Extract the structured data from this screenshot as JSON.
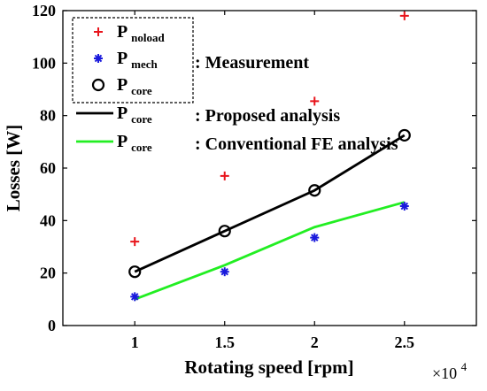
{
  "chart_data": {
    "type": "line",
    "x": [
      1,
      1.5,
      2,
      2.5
    ],
    "xlabel": "Rotating speed [rpm]",
    "ylabel": "Losses [W]",
    "x_multiplier_label": "×10",
    "x_multiplier_exponent": "4",
    "xlim": [
      0.6,
      2.9
    ],
    "ylim": [
      0,
      120
    ],
    "xticks": [
      "1",
      "1.5",
      "2",
      "2.5"
    ],
    "yticks": [
      "0",
      "20",
      "40",
      "60",
      "80",
      "100",
      "120"
    ],
    "grid": false,
    "series": [
      {
        "key": "noload",
        "main": "P",
        "sub": "noload",
        "marker": "plus",
        "color": "#e8141b",
        "values": [
          32,
          57,
          85.5,
          118
        ]
      },
      {
        "key": "mech",
        "main": "P",
        "sub": "mech",
        "marker": "star",
        "color": "#1a1adc",
        "values": [
          11,
          20.5,
          33.5,
          45.5
        ]
      },
      {
        "key": "core_meas",
        "main": "P",
        "sub": "core",
        "marker": "circle",
        "color": "#000000",
        "values": [
          20.5,
          36,
          51.5,
          72.5
        ]
      },
      {
        "key": "core_proposed",
        "main": "P",
        "sub": "core",
        "marker": "none",
        "line": true,
        "color": "#000000",
        "values": [
          20.5,
          36,
          51.5,
          72.5
        ]
      },
      {
        "key": "core_fe",
        "main": "P",
        "sub": "core",
        "marker": "none",
        "line": true,
        "color": "#22ee22",
        "values": [
          10,
          23,
          37.5,
          47
        ]
      }
    ],
    "legend": {
      "placement": "top-left",
      "boxed_group_label": ": Measurement",
      "proposed_label": ": Proposed analysis",
      "fe_label": ": Conventional FE analysis"
    }
  }
}
